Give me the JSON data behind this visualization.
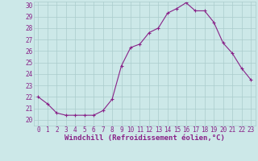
{
  "x": [
    0,
    1,
    2,
    3,
    4,
    5,
    6,
    7,
    8,
    9,
    10,
    11,
    12,
    13,
    14,
    15,
    16,
    17,
    18,
    19,
    20,
    21,
    22,
    23
  ],
  "y": [
    22.0,
    21.4,
    20.6,
    20.4,
    20.4,
    20.4,
    20.4,
    20.8,
    21.8,
    24.7,
    26.3,
    26.6,
    27.6,
    28.0,
    29.3,
    29.7,
    30.2,
    29.5,
    29.5,
    28.5,
    26.7,
    25.8,
    24.5,
    23.5
  ],
  "line_color": "#882288",
  "marker": "+",
  "bg_color": "#cce8e8",
  "grid_color": "#aacccc",
  "tick_color": "#882288",
  "label_color": "#882288",
  "xlabel": "Windchill (Refroidissement éolien,°C)",
  "ylim_min": 19.5,
  "ylim_max": 30.3,
  "xlim_min": -0.5,
  "xlim_max": 23.5,
  "yticks": [
    20,
    21,
    22,
    23,
    24,
    25,
    26,
    27,
    28,
    29,
    30
  ],
  "xticks": [
    0,
    1,
    2,
    3,
    4,
    5,
    6,
    7,
    8,
    9,
    10,
    11,
    12,
    13,
    14,
    15,
    16,
    17,
    18,
    19,
    20,
    21,
    22,
    23
  ],
  "tick_fontsize": 5.5,
  "label_fontsize": 6.5
}
